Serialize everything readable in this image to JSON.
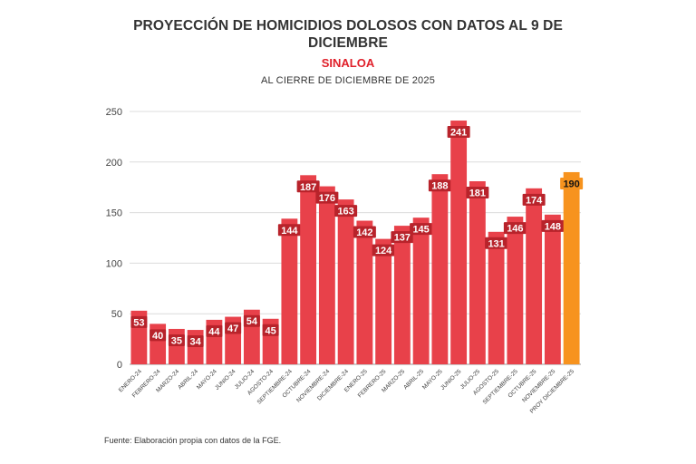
{
  "title": "PROYECCIÓN DE HOMICIDIOS DOLOSOS CON DATOS AL 9 DE DICIEMBRE",
  "subtitle": "SINALOA",
  "subtitle2": "AL CIERRE DE DICIEMBRE DE 2025",
  "source": "Fuente: Elaboración propia con datos de la FGE.",
  "colors": {
    "bar": "#e8414a",
    "highlight": "#f7931e",
    "label_bg": "#b8232b"
  },
  "chart_data": {
    "type": "bar",
    "title": "PROYECCIÓN DE HOMICIDIOS DOLOSOS CON DATOS AL 9 DE DICIEMBRE",
    "subtitle": "AL CIERRE DE DICIEMBRE DE 2025",
    "categories": [
      "ENERO-24",
      "FEBRERO-24",
      "MARZO-24",
      "ABRIL-24",
      "MAYO-24",
      "JUNIO-24",
      "JULIO-24",
      "AGOSTO-24",
      "SEPTIEMBRE-24",
      "OCTUBRE-24",
      "NOVIEMBRE-24",
      "DICIEMBRE-24",
      "ENERO-25",
      "FEBRERO-25",
      "MARZO-25",
      "ABRIL-25",
      "MAYO-25",
      "JUNIO-25",
      "JULIO-25",
      "AGOSTO-25",
      "SEPTIEMBRE-25",
      "OCTUBRE-25",
      "NOVIEMBRE-25",
      "PROY DICIEMBRE-25"
    ],
    "values": [
      53,
      40,
      35,
      34,
      44,
      47,
      54,
      45,
      144,
      187,
      176,
      163,
      142,
      124,
      137,
      145,
      188,
      241,
      181,
      131,
      146,
      174,
      148,
      190
    ],
    "highlight_index": 23,
    "yticks": [
      0,
      50,
      100,
      150,
      200,
      250
    ],
    "ylim": [
      0,
      250
    ],
    "grid": true,
    "legend": "none"
  }
}
